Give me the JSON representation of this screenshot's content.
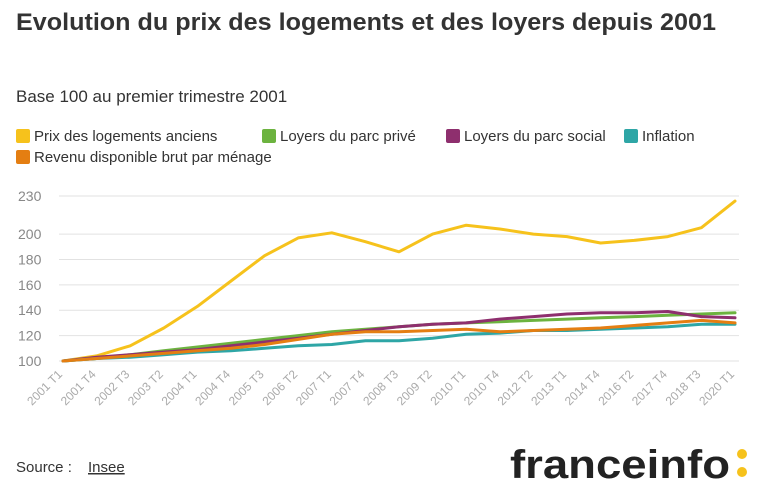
{
  "chart_data": {
    "type": "line",
    "title": "Evolution du prix des logements et des loyers depuis 2001",
    "subtitle": "Base 100 au premier trimestre 2001",
    "categories": [
      "2001 T1",
      "2001 T4",
      "2002 T3",
      "2003 T2",
      "2004 T1",
      "2004 T4",
      "2005 T3",
      "2006 T2",
      "2007 T1",
      "2007 T4",
      "2008 T3",
      "2009 T2",
      "2010 T1",
      "2010 T4",
      "2012 T2",
      "2013 T1",
      "2014 T4",
      "2016 T2",
      "2017 T4",
      "2018 T3",
      "2020 T1"
    ],
    "series": [
      {
        "name": "Prix des logements anciens",
        "color": "#f6c21c",
        "values": [
          100,
          104,
          112,
          126,
          143,
          163,
          183,
          197,
          201,
          194,
          186,
          200,
          207,
          204,
          200,
          198,
          193,
          195,
          198,
          205,
          226
        ]
      },
      {
        "name": "Loyers du parc privé",
        "color": "#6cb33f",
        "values": [
          100,
          102,
          105,
          108,
          111,
          114,
          117,
          120,
          123,
          125,
          127,
          129,
          130,
          131,
          132,
          133,
          134,
          135,
          136,
          137,
          138
        ]
      },
      {
        "name": "Loyers du parc social",
        "color": "#8e2f6e",
        "values": [
          100,
          103,
          105,
          107,
          109,
          112,
          115,
          118,
          121,
          124,
          127,
          129,
          130,
          133,
          135,
          137,
          138,
          138,
          139,
          135,
          134
        ]
      },
      {
        "name": "Inflation",
        "color": "#2ea6a6",
        "values": [
          100,
          102,
          103,
          105,
          107,
          108,
          110,
          112,
          113,
          116,
          116,
          118,
          121,
          122,
          124,
          124,
          125,
          126,
          127,
          129,
          129
        ]
      },
      {
        "name": "Revenu disponible brut par ménage",
        "color": "#e47e12",
        "values": [
          100,
          102,
          104,
          106,
          108,
          110,
          113,
          117,
          121,
          123,
          123,
          124,
          125,
          123,
          124,
          125,
          126,
          128,
          130,
          132,
          130
        ]
      }
    ],
    "ylim": [
      100,
      230
    ],
    "yticks": [
      100,
      120,
      140,
      160,
      180,
      200,
      230
    ],
    "grid": true,
    "source_label": "Source :",
    "source_link": "Insee",
    "logo": "franceinfo"
  }
}
